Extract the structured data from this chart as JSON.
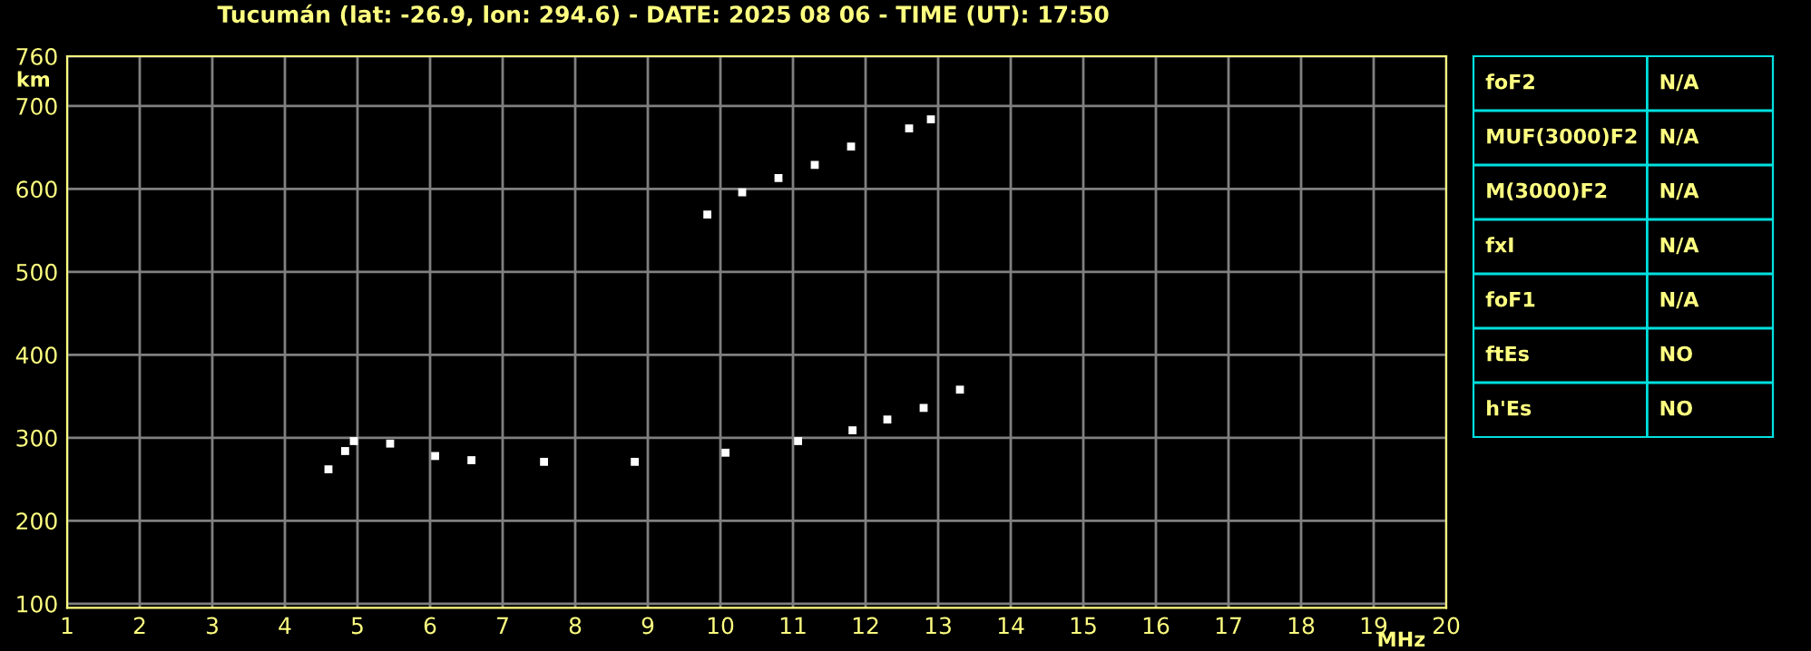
{
  "chart_data": [
    {
      "type": "scatter",
      "title": "Tucumán (lat: -26.9, lon: 294.6) - DATE: 2025 08 06 - TIME (UT): 17:50",
      "xlabel": "MHz",
      "ylabel": "km",
      "series": [
        {
          "color": "#ffffff",
          "x": [
            4.6,
            4.83,
            4.95,
            5.45,
            6.07,
            6.57,
            7.57,
            8.82,
            10.07,
            11.07,
            11.82,
            12.3,
            12.8,
            13.3
          ],
          "values": [
            262,
            284,
            296,
            293,
            278,
            273,
            271,
            271,
            282,
            296,
            309,
            322,
            336,
            358
          ]
        },
        {
          "color": "#ffffff",
          "x": [
            9.82,
            10.3,
            10.8,
            11.3,
            11.8,
            12.6,
            12.9
          ],
          "values": [
            569,
            596,
            613,
            629,
            651,
            673,
            684
          ]
        }
      ],
      "xlim": [
        1,
        20
      ],
      "ylim": [
        95,
        760
      ],
      "xticks": [
        1,
        2,
        3,
        4,
        5,
        6,
        7,
        8,
        9,
        10,
        11,
        12,
        13,
        14,
        15,
        16,
        17,
        18,
        19,
        20
      ],
      "yticks": [
        100,
        200,
        300,
        400,
        500,
        600,
        700,
        760
      ],
      "grid": true,
      "marker": "square"
    },
    {
      "type": "other",
      "annotations": [
        "foF2",
        "N/A",
        "MUF(3000)F2",
        "N/A",
        "M(3000)F2",
        "N/A",
        "fxI",
        "N/A",
        "foF1",
        "N/A",
        "ftEs",
        "NO",
        "h'Es",
        "NO"
      ]
    }
  ]
}
